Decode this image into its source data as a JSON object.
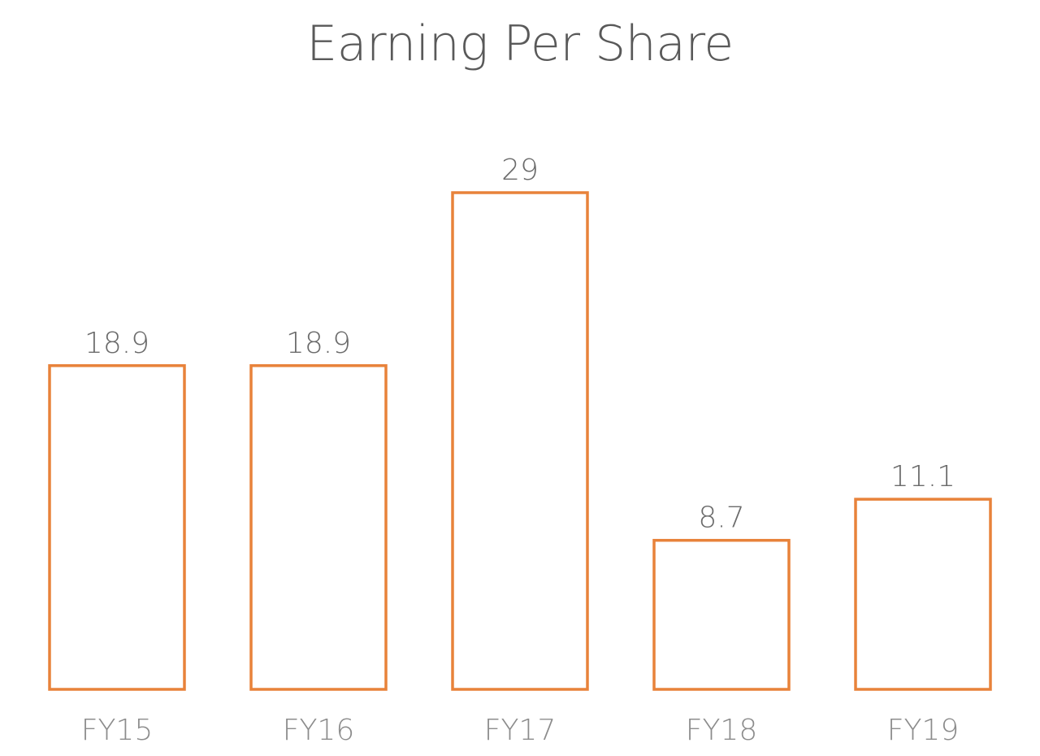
{
  "chart_data": {
    "type": "bar",
    "title": "Earning Per Share",
    "categories": [
      "FY15",
      "FY16",
      "FY17",
      "FY18",
      "FY19"
    ],
    "values": [
      18.9,
      18.9,
      29,
      8.7,
      11.1
    ],
    "data_labels": [
      "18.9",
      "18.9",
      "29",
      "8.7",
      "11.1"
    ],
    "xlabel": "",
    "ylabel": "",
    "ylim": [
      0,
      29
    ],
    "grid": false,
    "legend": "none",
    "bar_style": "outline",
    "colors": {
      "bar_stroke": "#e8823a",
      "bar_fill": "#ffffff",
      "title": "#595959",
      "data_label": "#6b6b6b",
      "tick_label": "#8c8c8c"
    }
  }
}
